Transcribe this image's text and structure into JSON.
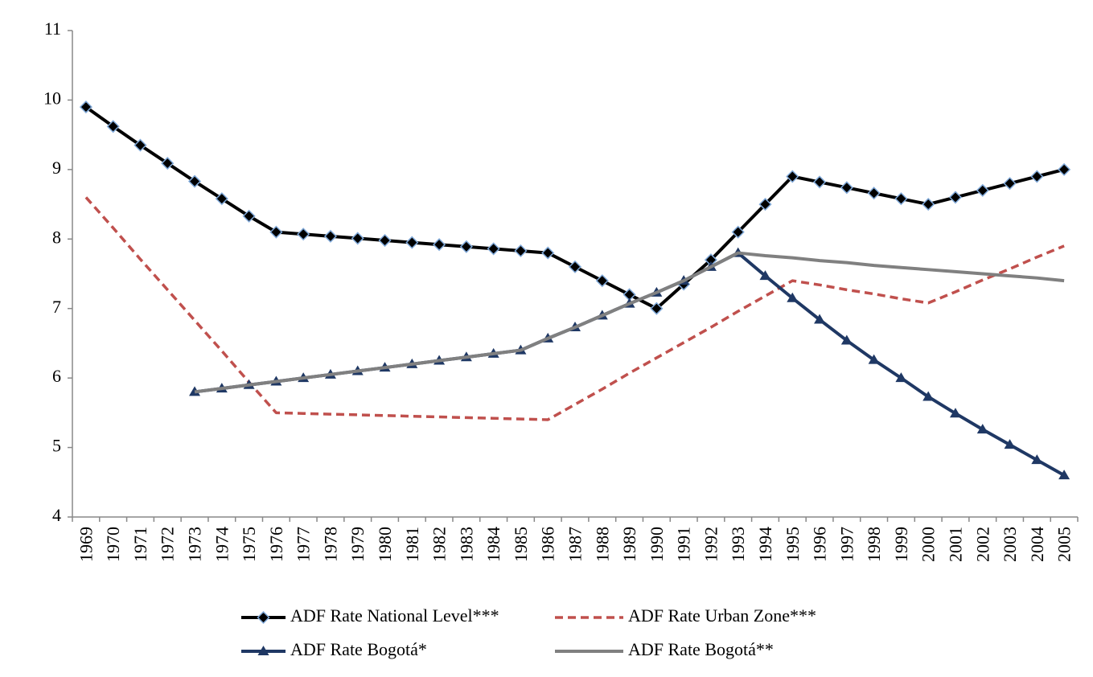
{
  "chart_data": {
    "type": "line",
    "categories": [
      "1969",
      "1970",
      "1971",
      "1972",
      "1973",
      "1974",
      "1975",
      "1976",
      "1977",
      "1978",
      "1979",
      "1980",
      "1981",
      "1982",
      "1983",
      "1984",
      "1985",
      "1986",
      "1987",
      "1988",
      "1989",
      "1990",
      "1991",
      "1992",
      "1993",
      "1994",
      "1995",
      "1996",
      "1997",
      "1998",
      "1999",
      "2000",
      "2001",
      "2002",
      "2003",
      "2004",
      "2005"
    ],
    "series": [
      {
        "name": "ADF Rate National Level***",
        "color": "#000000",
        "marker": "diamond",
        "dashed": false,
        "values": [
          9.9,
          9.62,
          9.35,
          9.09,
          8.83,
          8.58,
          8.33,
          8.1,
          8.07,
          8.04,
          8.01,
          7.98,
          7.95,
          7.92,
          7.89,
          7.86,
          7.83,
          7.8,
          7.6,
          7.4,
          7.2,
          7.0,
          7.35,
          7.7,
          8.1,
          8.5,
          8.9,
          8.82,
          8.74,
          8.66,
          8.58,
          8.5,
          8.6,
          8.7,
          8.8,
          8.9,
          9.0
        ]
      },
      {
        "name": "ADF Rate Urban Zone***",
        "color": "#c0504d",
        "marker": null,
        "dashed": true,
        "values": [
          8.6,
          8.16,
          7.71,
          7.27,
          6.83,
          6.39,
          5.94,
          5.5,
          5.49,
          5.48,
          5.47,
          5.46,
          5.45,
          5.44,
          5.43,
          5.42,
          5.41,
          5.4,
          5.62,
          5.84,
          6.07,
          6.29,
          6.51,
          6.73,
          6.96,
          7.18,
          7.4,
          7.34,
          7.27,
          7.21,
          7.14,
          7.08,
          7.24,
          7.41,
          7.57,
          7.74,
          7.9
        ]
      },
      {
        "name": "ADF Rate Bogotá*",
        "color": "#1f3864",
        "marker": "triangle",
        "dashed": false,
        "values": [
          null,
          null,
          null,
          null,
          5.8,
          5.85,
          5.9,
          5.95,
          6.0,
          6.05,
          6.1,
          6.15,
          6.2,
          6.25,
          6.3,
          6.35,
          6.4,
          6.57,
          6.73,
          6.9,
          7.07,
          7.23,
          7.4,
          7.6,
          7.8,
          7.47,
          7.15,
          6.84,
          6.54,
          6.26,
          6.0,
          5.73,
          5.49,
          5.26,
          5.04,
          4.82,
          4.6
        ]
      },
      {
        "name": "ADF Rate Bogotá**",
        "color": "#808080",
        "marker": null,
        "dashed": false,
        "values": [
          null,
          null,
          null,
          null,
          5.8,
          5.85,
          5.9,
          5.95,
          6.0,
          6.05,
          6.1,
          6.15,
          6.2,
          6.25,
          6.3,
          6.35,
          6.4,
          6.57,
          6.73,
          6.9,
          7.07,
          7.23,
          7.4,
          7.6,
          7.8,
          7.76,
          7.73,
          7.69,
          7.66,
          7.62,
          7.59,
          7.56,
          7.53,
          7.5,
          7.47,
          7.44,
          7.4
        ]
      }
    ],
    "ylim": [
      4,
      11
    ],
    "yticks": [
      4,
      5,
      6,
      7,
      8,
      9,
      10,
      11
    ],
    "grid": false,
    "legend": "bottom"
  }
}
